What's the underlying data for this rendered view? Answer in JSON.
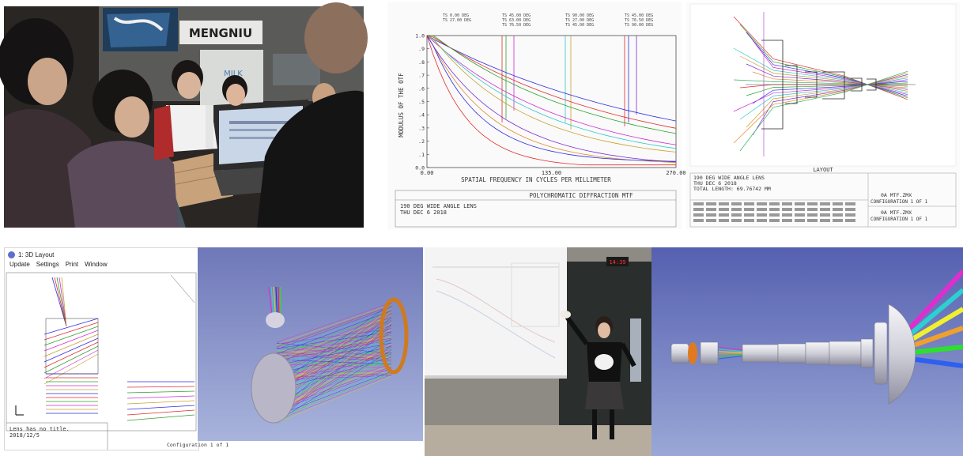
{
  "photo_students": {
    "sign_text": "MENGNIU",
    "sign_sub": "MILK"
  },
  "mtf_chart": {
    "ylabel": "MODULUS OF THE OTF",
    "xlabel": "SPATIAL FREQUENCY IN CYCLES PER MILLIMETER",
    "yticks": [
      "1.0",
      ".9",
      ".8",
      ".7",
      ".6",
      ".5",
      ".4",
      ".3",
      ".2",
      ".1",
      "0.0"
    ],
    "xticks": [
      "0.00",
      "135.00",
      "270.00"
    ],
    "field_labels": [
      "TS 0.00 DEG",
      "TS 27.00 DEG",
      "TS 45.00 DEG",
      "TS 63.00 DEG",
      "TS 76.50 DEG",
      "TS 90.00 DEG",
      "TS 27.00 DEG",
      "TS 45.00 DEG",
      "TS 45.00 DEG",
      "TS 76.50 DEG",
      "TS 90.00 DEG"
    ],
    "footer_title": "POLYCHROMATIC DIFFRACTION MTF",
    "footer_lens": "190 DEG WIDE ANGLE LENS",
    "footer_date": "THU DEC 6 2018",
    "colors": [
      "#2d2de0",
      "#e02d2d",
      "#2da02d",
      "#d02dd0",
      "#2dc8c8",
      "#c8a02d",
      "#7a2dd0",
      "#e08a2d"
    ]
  },
  "layout_2d": {
    "title": "LAYOUT",
    "lens_name": "190 DEG WIDE ANGLE LENS",
    "date": "THU DEC 6 2018",
    "total_length": "TOTAL LENGTH:   69.76742 MM",
    "file1": "0A  MTF.ZMX",
    "config1": "CONFIGURATION 1 OF 1",
    "file2": "0A  MTF.ZMX",
    "config2": "CONFIGURATION 1 OF 1"
  },
  "layout_3d_window": {
    "title": "1: 3D Layout",
    "menu": [
      "Update",
      "Settings",
      "Print",
      "Window"
    ],
    "note": "Lens has no title.",
    "date": "2018/12/5",
    "config": "Configuration 1 of 1"
  },
  "render_3d": {},
  "photo_lecture": {
    "clock": "14:39"
  },
  "render_lens_tube": {}
}
